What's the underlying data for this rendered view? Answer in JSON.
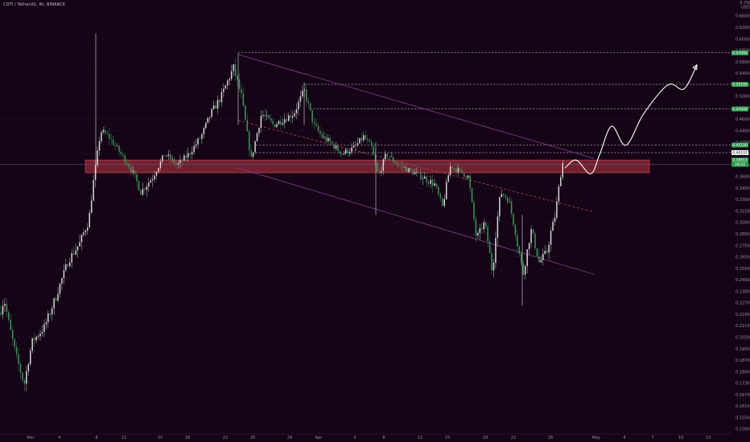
{
  "header": {
    "title": "COTI / TetherUS, 4h, BINANCE"
  },
  "price_scale": {
    "currency": "USDT",
    "top_value": "0.7000",
    "labels": [
      "0.66000",
      "0.62000",
      "0.60000",
      "0.58000",
      "0.56000",
      "0.54000",
      "0.52000",
      "0.50000",
      "0.48000",
      "0.46000",
      "0.44000",
      "0.42000",
      "0.40000",
      "0.38000",
      "0.36000",
      "0.34500",
      "0.33000",
      "0.31500",
      "0.30000",
      "0.28500",
      "0.27500",
      "0.26500",
      "0.25500",
      "0.24500",
      "0.23500",
      "0.22700",
      "0.21900",
      "0.21100",
      "0.20300",
      "0.19500",
      "0.18700",
      "0.18000",
      "0.17300",
      "0.16700",
      "0.16100",
      "0.15500",
      "0.15000"
    ]
  },
  "time_axis": {
    "labels": [
      "Mar",
      "4",
      "8",
      "11",
      "15",
      "18",
      "22",
      "25",
      "29",
      "Apr",
      "5",
      "8",
      "12",
      "15",
      "19",
      "22",
      "26",
      "May",
      "4",
      "7",
      "10",
      "13"
    ]
  },
  "badges": [
    {
      "value": "0.57600",
      "color": "#2e9d4e",
      "text_color": "#ffffff"
    },
    {
      "value": "0.52100",
      "color": "#2e9d4e",
      "text_color": "#ffffff"
    },
    {
      "value": "0.47800",
      "color": "#2e9d4e",
      "text_color": "#ffffff"
    },
    {
      "value": "0.41520",
      "color": "#2e9d4e",
      "text_color": "#ffffff"
    },
    {
      "value": "0.40197",
      "color": "#ffffff",
      "text_color": "#111111"
    },
    {
      "value": "0.38913",
      "color": "#2e9d4e",
      "text_color": "#ffffff"
    },
    {
      "value": "18:22",
      "color": "#2e9d4e",
      "text_color": "#ffffff"
    }
  ],
  "colors": {
    "background": "#140416",
    "up_candle": "#d8d8d8",
    "down_candle": "#3c9a5a",
    "zone_fill": "#8a2a38",
    "zone_border": "#c23a4a",
    "channel_line": "#7a3a86",
    "midline": "#b24a55",
    "projection": "#ffffff"
  },
  "chart_data": {
    "type": "candlestick",
    "symbol": "COTI / TetherUS",
    "interval": "4h",
    "exchange": "BINANCE",
    "ylim": [
      0.15,
      0.7
    ],
    "price_path": [
      {
        "t": 0,
        "p": 0.22
      },
      {
        "t": 5,
        "p": 0.23
      },
      {
        "t": 12,
        "p": 0.21
      },
      {
        "t": 20,
        "p": 0.19
      },
      {
        "t": 30,
        "p": 0.172
      },
      {
        "t": 40,
        "p": 0.2
      },
      {
        "t": 55,
        "p": 0.21
      },
      {
        "t": 70,
        "p": 0.232
      },
      {
        "t": 85,
        "p": 0.262
      },
      {
        "t": 100,
        "p": 0.278
      },
      {
        "t": 110,
        "p": 0.3
      },
      {
        "t": 118,
        "p": 0.37
      },
      {
        "t": 125,
        "p": 0.44
      },
      {
        "t": 135,
        "p": 0.43
      },
      {
        "t": 145,
        "p": 0.41
      },
      {
        "t": 160,
        "p": 0.38
      },
      {
        "t": 175,
        "p": 0.34
      },
      {
        "t": 190,
        "p": 0.36
      },
      {
        "t": 205,
        "p": 0.4
      },
      {
        "t": 220,
        "p": 0.38
      },
      {
        "t": 235,
        "p": 0.4
      },
      {
        "t": 250,
        "p": 0.43
      },
      {
        "t": 262,
        "p": 0.47
      },
      {
        "t": 275,
        "p": 0.5
      },
      {
        "t": 290,
        "p": 0.55
      },
      {
        "t": 300,
        "p": 0.5
      },
      {
        "t": 312,
        "p": 0.39
      },
      {
        "t": 325,
        "p": 0.47
      },
      {
        "t": 340,
        "p": 0.45
      },
      {
        "t": 352,
        "p": 0.46
      },
      {
        "t": 365,
        "p": 0.47
      },
      {
        "t": 378,
        "p": 0.51
      },
      {
        "t": 390,
        "p": 0.45
      },
      {
        "t": 400,
        "p": 0.43
      },
      {
        "t": 410,
        "p": 0.42
      },
      {
        "t": 425,
        "p": 0.4
      },
      {
        "t": 440,
        "p": 0.41
      },
      {
        "t": 452,
        "p": 0.43
      },
      {
        "t": 462,
        "p": 0.41
      },
      {
        "t": 470,
        "p": 0.36
      },
      {
        "t": 480,
        "p": 0.4
      },
      {
        "t": 495,
        "p": 0.38
      },
      {
        "t": 510,
        "p": 0.37
      },
      {
        "t": 525,
        "p": 0.36
      },
      {
        "t": 540,
        "p": 0.35
      },
      {
        "t": 550,
        "p": 0.32
      },
      {
        "t": 560,
        "p": 0.38
      },
      {
        "t": 570,
        "p": 0.37
      },
      {
        "t": 582,
        "p": 0.36
      },
      {
        "t": 592,
        "p": 0.28
      },
      {
        "t": 602,
        "p": 0.3
      },
      {
        "t": 612,
        "p": 0.25
      },
      {
        "t": 622,
        "p": 0.34
      },
      {
        "t": 632,
        "p": 0.33
      },
      {
        "t": 642,
        "p": 0.28
      },
      {
        "t": 650,
        "p": 0.25
      },
      {
        "t": 660,
        "p": 0.29
      },
      {
        "t": 670,
        "p": 0.26
      },
      {
        "t": 680,
        "p": 0.27
      },
      {
        "t": 690,
        "p": 0.31
      },
      {
        "t": 700,
        "p": 0.39
      }
    ],
    "wicks": [
      {
        "t": 119,
        "high": 0.61,
        "low": 0.36
      },
      {
        "t": 296,
        "high": 0.575,
        "low": 0.45
      },
      {
        "t": 378,
        "high": 0.525,
        "low": 0.45
      },
      {
        "t": 467,
        "high": 0.42,
        "low": 0.31
      },
      {
        "t": 649,
        "high": 0.31,
        "low": 0.225
      }
    ],
    "resistance_zone": {
      "low": 0.367,
      "high": 0.389
    },
    "levels": [
      0.576,
      0.521,
      0.478,
      0.4152,
      0.40197
    ],
    "descending_channel": {
      "upper": [
        {
          "t": 296,
          "p": 0.573
        },
        {
          "t": 738,
          "p": 0.392
        }
      ],
      "lower": [
        {
          "t": 296,
          "p": 0.375
        },
        {
          "t": 738,
          "p": 0.25
        }
      ],
      "mid": [
        {
          "t": 296,
          "p": 0.458
        },
        {
          "t": 738,
          "p": 0.314
        }
      ]
    },
    "projection": [
      {
        "t": 702,
        "p": 0.375
      },
      {
        "t": 716,
        "p": 0.389
      },
      {
        "t": 734,
        "p": 0.365
      },
      {
        "t": 745,
        "p": 0.398
      },
      {
        "t": 760,
        "p": 0.448
      },
      {
        "t": 778,
        "p": 0.415
      },
      {
        "t": 800,
        "p": 0.47
      },
      {
        "t": 830,
        "p": 0.52
      },
      {
        "t": 850,
        "p": 0.513
      },
      {
        "t": 866,
        "p": 0.555
      }
    ]
  }
}
